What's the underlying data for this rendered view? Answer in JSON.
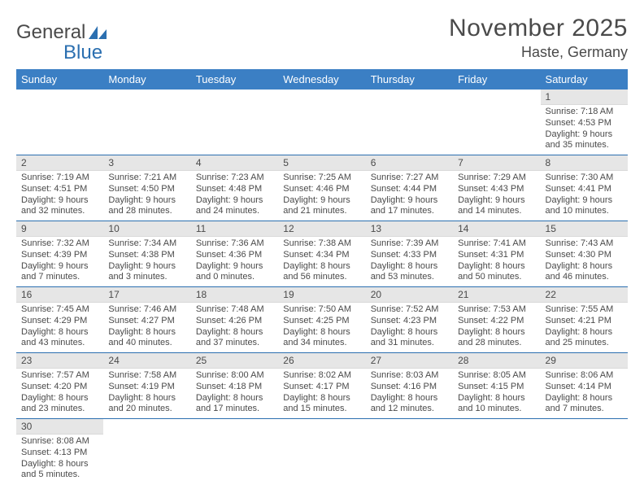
{
  "logo": {
    "text1": "General",
    "text2": "Blue"
  },
  "title": "November 2025",
  "location": "Haste, Germany",
  "colors": {
    "header_bg": "#3b7fc4",
    "header_fg": "#ffffff",
    "row_divider": "#2b6fb0",
    "daynum_bg": "#e6e6e6",
    "text": "#4a4a4a",
    "logo_accent": "#2b6fb0"
  },
  "weekdays": [
    "Sunday",
    "Monday",
    "Tuesday",
    "Wednesday",
    "Thursday",
    "Friday",
    "Saturday"
  ],
  "weeks": [
    [
      null,
      null,
      null,
      null,
      null,
      null,
      {
        "n": "1",
        "sr": "Sunrise: 7:18 AM",
        "ss": "Sunset: 4:53 PM",
        "dl": "Daylight: 9 hours and 35 minutes."
      }
    ],
    [
      {
        "n": "2",
        "sr": "Sunrise: 7:19 AM",
        "ss": "Sunset: 4:51 PM",
        "dl": "Daylight: 9 hours and 32 minutes."
      },
      {
        "n": "3",
        "sr": "Sunrise: 7:21 AM",
        "ss": "Sunset: 4:50 PM",
        "dl": "Daylight: 9 hours and 28 minutes."
      },
      {
        "n": "4",
        "sr": "Sunrise: 7:23 AM",
        "ss": "Sunset: 4:48 PM",
        "dl": "Daylight: 9 hours and 24 minutes."
      },
      {
        "n": "5",
        "sr": "Sunrise: 7:25 AM",
        "ss": "Sunset: 4:46 PM",
        "dl": "Daylight: 9 hours and 21 minutes."
      },
      {
        "n": "6",
        "sr": "Sunrise: 7:27 AM",
        "ss": "Sunset: 4:44 PM",
        "dl": "Daylight: 9 hours and 17 minutes."
      },
      {
        "n": "7",
        "sr": "Sunrise: 7:29 AM",
        "ss": "Sunset: 4:43 PM",
        "dl": "Daylight: 9 hours and 14 minutes."
      },
      {
        "n": "8",
        "sr": "Sunrise: 7:30 AM",
        "ss": "Sunset: 4:41 PM",
        "dl": "Daylight: 9 hours and 10 minutes."
      }
    ],
    [
      {
        "n": "9",
        "sr": "Sunrise: 7:32 AM",
        "ss": "Sunset: 4:39 PM",
        "dl": "Daylight: 9 hours and 7 minutes."
      },
      {
        "n": "10",
        "sr": "Sunrise: 7:34 AM",
        "ss": "Sunset: 4:38 PM",
        "dl": "Daylight: 9 hours and 3 minutes."
      },
      {
        "n": "11",
        "sr": "Sunrise: 7:36 AM",
        "ss": "Sunset: 4:36 PM",
        "dl": "Daylight: 9 hours and 0 minutes."
      },
      {
        "n": "12",
        "sr": "Sunrise: 7:38 AM",
        "ss": "Sunset: 4:34 PM",
        "dl": "Daylight: 8 hours and 56 minutes."
      },
      {
        "n": "13",
        "sr": "Sunrise: 7:39 AM",
        "ss": "Sunset: 4:33 PM",
        "dl": "Daylight: 8 hours and 53 minutes."
      },
      {
        "n": "14",
        "sr": "Sunrise: 7:41 AM",
        "ss": "Sunset: 4:31 PM",
        "dl": "Daylight: 8 hours and 50 minutes."
      },
      {
        "n": "15",
        "sr": "Sunrise: 7:43 AM",
        "ss": "Sunset: 4:30 PM",
        "dl": "Daylight: 8 hours and 46 minutes."
      }
    ],
    [
      {
        "n": "16",
        "sr": "Sunrise: 7:45 AM",
        "ss": "Sunset: 4:29 PM",
        "dl": "Daylight: 8 hours and 43 minutes."
      },
      {
        "n": "17",
        "sr": "Sunrise: 7:46 AM",
        "ss": "Sunset: 4:27 PM",
        "dl": "Daylight: 8 hours and 40 minutes."
      },
      {
        "n": "18",
        "sr": "Sunrise: 7:48 AM",
        "ss": "Sunset: 4:26 PM",
        "dl": "Daylight: 8 hours and 37 minutes."
      },
      {
        "n": "19",
        "sr": "Sunrise: 7:50 AM",
        "ss": "Sunset: 4:25 PM",
        "dl": "Daylight: 8 hours and 34 minutes."
      },
      {
        "n": "20",
        "sr": "Sunrise: 7:52 AM",
        "ss": "Sunset: 4:23 PM",
        "dl": "Daylight: 8 hours and 31 minutes."
      },
      {
        "n": "21",
        "sr": "Sunrise: 7:53 AM",
        "ss": "Sunset: 4:22 PM",
        "dl": "Daylight: 8 hours and 28 minutes."
      },
      {
        "n": "22",
        "sr": "Sunrise: 7:55 AM",
        "ss": "Sunset: 4:21 PM",
        "dl": "Daylight: 8 hours and 25 minutes."
      }
    ],
    [
      {
        "n": "23",
        "sr": "Sunrise: 7:57 AM",
        "ss": "Sunset: 4:20 PM",
        "dl": "Daylight: 8 hours and 23 minutes."
      },
      {
        "n": "24",
        "sr": "Sunrise: 7:58 AM",
        "ss": "Sunset: 4:19 PM",
        "dl": "Daylight: 8 hours and 20 minutes."
      },
      {
        "n": "25",
        "sr": "Sunrise: 8:00 AM",
        "ss": "Sunset: 4:18 PM",
        "dl": "Daylight: 8 hours and 17 minutes."
      },
      {
        "n": "26",
        "sr": "Sunrise: 8:02 AM",
        "ss": "Sunset: 4:17 PM",
        "dl": "Daylight: 8 hours and 15 minutes."
      },
      {
        "n": "27",
        "sr": "Sunrise: 8:03 AM",
        "ss": "Sunset: 4:16 PM",
        "dl": "Daylight: 8 hours and 12 minutes."
      },
      {
        "n": "28",
        "sr": "Sunrise: 8:05 AM",
        "ss": "Sunset: 4:15 PM",
        "dl": "Daylight: 8 hours and 10 minutes."
      },
      {
        "n": "29",
        "sr": "Sunrise: 8:06 AM",
        "ss": "Sunset: 4:14 PM",
        "dl": "Daylight: 8 hours and 7 minutes."
      }
    ],
    [
      {
        "n": "30",
        "sr": "Sunrise: 8:08 AM",
        "ss": "Sunset: 4:13 PM",
        "dl": "Daylight: 8 hours and 5 minutes."
      },
      null,
      null,
      null,
      null,
      null,
      null
    ]
  ]
}
